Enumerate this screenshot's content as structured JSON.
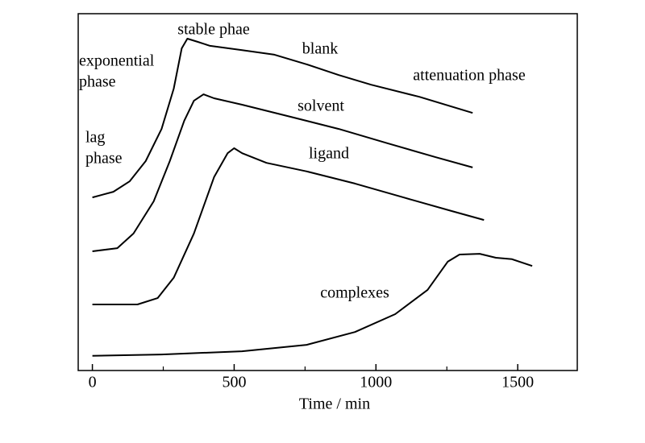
{
  "chart_data": {
    "type": "line",
    "xlabel": "Time / min",
    "xlim": [
      -50,
      1710
    ],
    "xticks": [
      0,
      500,
      1000,
      1500
    ],
    "xminorticks": [
      250,
      750,
      1250
    ],
    "ylim": [
      0,
      100
    ],
    "annotations": [
      "stable phae",
      "exponential",
      "phase",
      "lag",
      "phase",
      "blank",
      "attenuation phase",
      "solvent",
      "ligand",
      "complexes"
    ],
    "series": [
      {
        "name": "blank",
        "color": "#000000",
        "x": [
          0,
          74,
          131,
          188,
          244,
          287,
          315,
          335,
          372,
          415,
          528,
          642,
          756,
          869,
          983,
          1153,
          1341
        ],
        "values": [
          48.5,
          50.1,
          53.0,
          58.7,
          67.7,
          79.0,
          90.3,
          93.0,
          92.1,
          91.0,
          89.8,
          88.5,
          85.8,
          82.8,
          80.1,
          76.7,
          72.2
        ]
      },
      {
        "name": "solvent",
        "color": "#000000",
        "x": [
          0,
          88,
          145,
          216,
          273,
          324,
          358,
          392,
          429,
          528,
          699,
          869,
          1040,
          1210,
          1341
        ],
        "values": [
          33.4,
          34.3,
          38.4,
          47.4,
          58.7,
          70.0,
          75.6,
          77.4,
          76.3,
          74.5,
          71.1,
          67.7,
          63.7,
          59.8,
          56.9
        ]
      },
      {
        "name": "ligand",
        "color": "#000000",
        "x": [
          0,
          159,
          230,
          287,
          358,
          429,
          477,
          500,
          528,
          614,
          756,
          926,
          1097,
          1267,
          1381
        ],
        "values": [
          18.5,
          18.5,
          20.3,
          26.0,
          38.4,
          54.2,
          60.9,
          62.3,
          60.9,
          58.2,
          55.8,
          52.4,
          48.5,
          44.7,
          42.2
        ]
      },
      {
        "name": "complexes",
        "color": "#000000",
        "x": [
          0,
          244,
          528,
          756,
          926,
          1068,
          1182,
          1253,
          1295,
          1366,
          1423,
          1480,
          1551
        ],
        "values": [
          4.1,
          4.5,
          5.4,
          7.2,
          10.8,
          15.8,
          22.6,
          30.5,
          32.5,
          32.7,
          31.6,
          31.2,
          29.3
        ]
      }
    ]
  }
}
